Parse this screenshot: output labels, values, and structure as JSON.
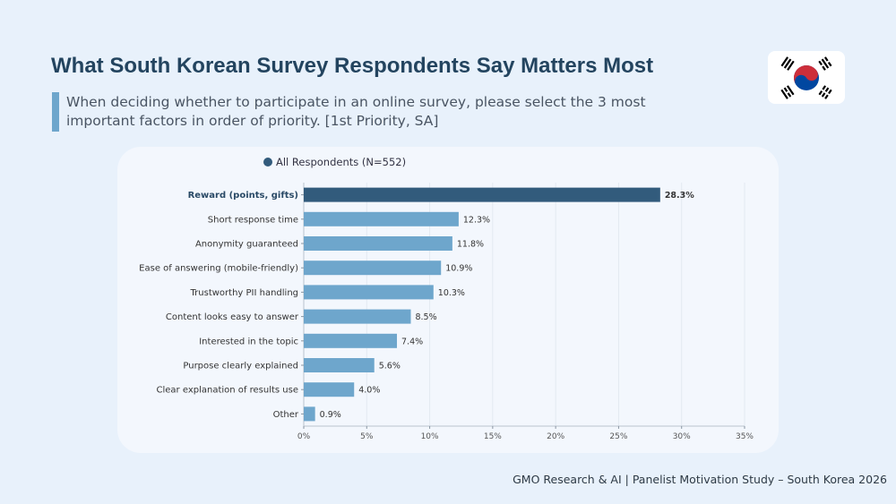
{
  "title": "What South Korean Survey Respondents Say Matters Most",
  "subtitle": "When deciding whether to participate in an online survey, please select the 3 most important factors in order of priority. [1st Priority, SA]",
  "footer": "GMO Research & AI | Panelist Motivation Study – South Korea 2026",
  "flag": {
    "icon": "south-korea-flag-icon",
    "red": "#cd2e3a",
    "blue": "#0047a0"
  },
  "chart_data": {
    "type": "bar",
    "orientation": "horizontal",
    "categories": [
      "Reward (points, gifts)",
      "Short response time",
      "Anonymity guaranteed",
      "Ease of answering (mobile-friendly)",
      "Trustworthy PII handling",
      "Content looks easy to answer",
      "Interested in the topic",
      "Purpose clearly explained",
      "Clear explanation of results use",
      "Other"
    ],
    "series": [
      {
        "name": "All Respondents (N=552)",
        "values": [
          28.3,
          12.3,
          11.8,
          10.9,
          10.3,
          8.5,
          7.4,
          5.6,
          4.0,
          0.9
        ]
      }
    ],
    "value_labels": [
      "28.3%",
      "12.3%",
      "11.8%",
      "10.9%",
      "10.3%",
      "8.5%",
      "7.4%",
      "5.6%",
      "4.0%",
      "0.9%"
    ],
    "highlight_index": 0,
    "xlim": [
      0,
      35
    ],
    "xticks": [
      0,
      5,
      10,
      15,
      20,
      25,
      30,
      35
    ],
    "xtick_labels": [
      "0%",
      "5%",
      "10%",
      "15%",
      "20%",
      "25%",
      "30%",
      "35%"
    ],
    "colors": {
      "highlight": "#325b7c",
      "bar": "#6ea6cc"
    },
    "grid": "vertical",
    "legend": "top-center"
  }
}
